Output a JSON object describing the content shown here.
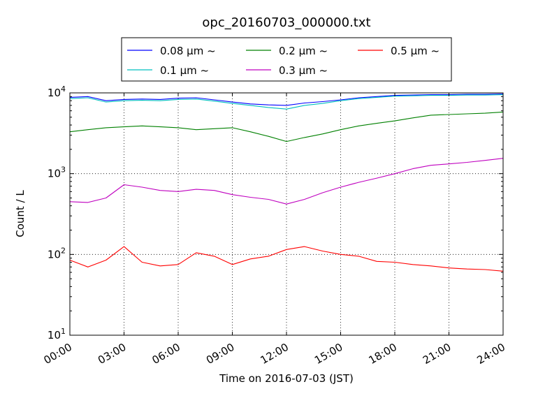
{
  "chart_data": {
    "type": "line",
    "title": "opc_20160703_000000.txt",
    "xlabel": "Time on 2016-07-03 (JST)",
    "ylabel": "Count / L",
    "y_scale": "log",
    "xlim": [
      0,
      24
    ],
    "ylim": [
      10,
      10000
    ],
    "grid": true,
    "grid_style": "dotted",
    "legend_position": "top-center",
    "x_ticks": [
      0,
      3,
      6,
      9,
      12,
      15,
      18,
      21,
      24
    ],
    "x_tick_labels": [
      "00:00",
      "03:00",
      "06:00",
      "09:00",
      "12:00",
      "15:00",
      "18:00",
      "21:00",
      "24:00"
    ],
    "y_ticks": [
      10,
      100,
      1000,
      10000
    ],
    "y_tick_labels": [
      {
        "base": "10",
        "exp": "1"
      },
      {
        "base": "10",
        "exp": "2"
      },
      {
        "base": "10",
        "exp": "3"
      },
      {
        "base": "10",
        "exp": "4"
      }
    ],
    "x": [
      0,
      1,
      2,
      3,
      4,
      5,
      6,
      7,
      8,
      9,
      10,
      11,
      12,
      13,
      14,
      15,
      16,
      17,
      18,
      19,
      20,
      21,
      22,
      23,
      24
    ],
    "series": [
      {
        "name": "0.08 μm ~",
        "color": "#0000ff",
        "values": [
          8800,
          9000,
          8000,
          8300,
          8400,
          8300,
          8600,
          8700,
          8200,
          7700,
          7300,
          7100,
          7000,
          7500,
          7800,
          8200,
          8700,
          9000,
          9300,
          9400,
          9500,
          9500,
          9600,
          9600,
          9700
        ]
      },
      {
        "name": "0.1 μm ~",
        "color": "#00bfbf",
        "values": [
          8500,
          8700,
          7700,
          8000,
          8100,
          8000,
          8300,
          8400,
          7900,
          7400,
          7000,
          6600,
          6300,
          7000,
          7400,
          8000,
          8500,
          8800,
          9100,
          9200,
          9300,
          9300,
          9400,
          9400,
          9500
        ]
      },
      {
        "name": "0.2 μm ~",
        "color": "#008000",
        "values": [
          3300,
          3500,
          3700,
          3800,
          3900,
          3800,
          3700,
          3500,
          3600,
          3700,
          3300,
          2900,
          2500,
          2800,
          3100,
          3500,
          3900,
          4200,
          4500,
          4900,
          5300,
          5400,
          5500,
          5600,
          5800
        ]
      },
      {
        "name": "0.3 μm ~",
        "color": "#bf00bf",
        "values": [
          450,
          440,
          500,
          730,
          680,
          620,
          600,
          640,
          620,
          550,
          510,
          480,
          420,
          480,
          580,
          680,
          780,
          880,
          1000,
          1150,
          1270,
          1320,
          1380,
          1460,
          1550
        ]
      },
      {
        "name": "0.5 μm ~",
        "color": "#ff0000",
        "values": [
          85,
          70,
          85,
          125,
          80,
          72,
          75,
          105,
          95,
          75,
          88,
          95,
          115,
          125,
          110,
          100,
          95,
          82,
          80,
          75,
          72,
          68,
          66,
          65,
          62
        ]
      }
    ]
  }
}
